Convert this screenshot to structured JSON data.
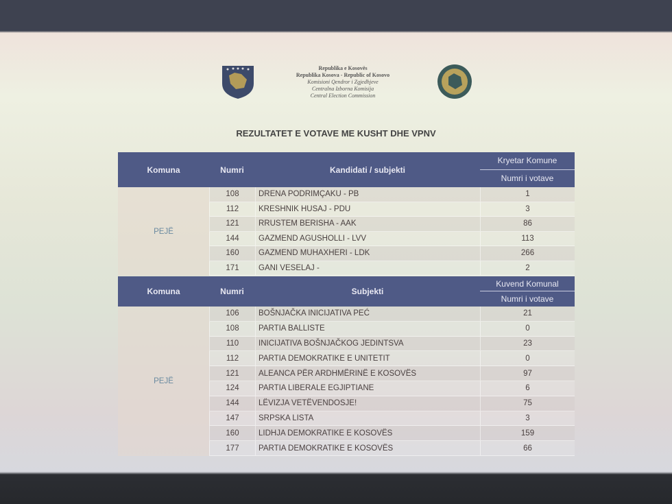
{
  "header": {
    "lines": [
      "Republika e Kosovës",
      "Republika Kosova - Republic of Kosovo",
      "Komisioni Qendror i Zgjedhjeve",
      "Centralna Izborna Komisija",
      "Central Election Commission"
    ],
    "title": "REZULTATET E VOTAVE ME KUSHT DHE VPNV"
  },
  "tables": [
    {
      "headers": [
        "Komuna",
        "Numri",
        "Kandidati / subjekti",
        "Kryetar Komune",
        "Numri i votave"
      ],
      "komuna": "PEJË",
      "rows": [
        [
          108,
          "DRENA PODRIMÇAKU - PB",
          1
        ],
        [
          112,
          "KRESHNIK HUSAJ - PDU",
          3
        ],
        [
          121,
          "RRUSTEM BERISHA - AAK",
          86
        ],
        [
          144,
          "GAZMEND AGUSHOLLI - LVV",
          113
        ],
        [
          160,
          "GAZMEND MUHAXHERI - LDK",
          266
        ],
        [
          171,
          "GANI VESELAJ -",
          2
        ]
      ]
    },
    {
      "headers": [
        "Komuna",
        "Numri",
        "Subjekti",
        "Kuvend Komunal",
        "Numri i votave"
      ],
      "komuna": "PEJË",
      "rows": [
        [
          106,
          "BOŠNJAČKA INICIJATIVA PEĆ",
          21
        ],
        [
          108,
          "PARTIA BALLISTE",
          0
        ],
        [
          110,
          "INICIJATIVA BOŠNJAČKOG JEDINTSVA",
          23
        ],
        [
          112,
          "PARTIA DEMOKRATIKE E UNITETIT",
          0
        ],
        [
          121,
          "ALEANCA PËR ARDHMËRINË E KOSOVËS",
          97
        ],
        [
          124,
          "PARTIA LIBERALE EGJIPTIANE",
          6
        ],
        [
          144,
          "LËVIZJA VETËVENDOSJE!",
          75
        ],
        [
          147,
          "SRPSKA LISTA",
          3
        ],
        [
          160,
          "LIDHJA DEMOKRATIKE E KOSOVËS",
          159
        ],
        [
          177,
          "PARTIA DEMOKRATIKE E KOSOVËS",
          66
        ]
      ]
    }
  ]
}
